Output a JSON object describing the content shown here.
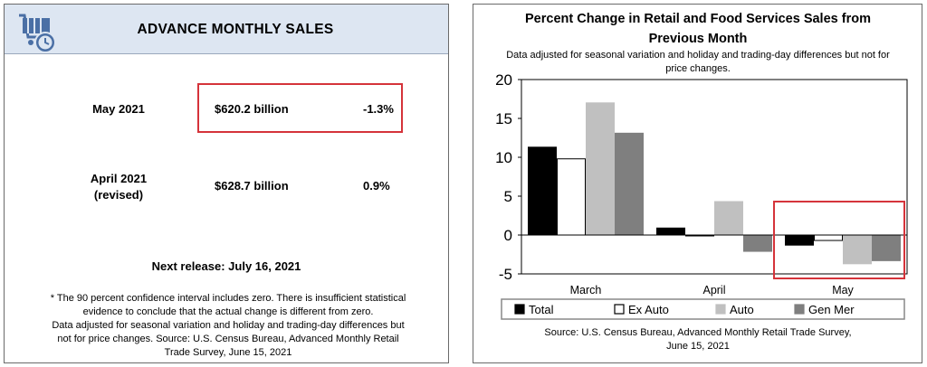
{
  "sales_panel": {
    "title": "ADVANCE MONTHLY SALES",
    "icon": "shopping-cart-clock-icon",
    "rows": [
      {
        "label": "May 2021",
        "value": "$620.2 billion",
        "change": "-1.3%"
      },
      {
        "label_line1": "April 2021",
        "label_line2": "(revised)",
        "value": "$628.7 billion",
        "change": "0.9%"
      }
    ],
    "next_release": "Next release: July 16, 2021",
    "footnote": [
      "* The 90 percent confidence interval includes zero. There is insufficient statistical",
      "evidence to conclude that the actual change is different from zero.",
      "Data adjusted for seasonal variation and holiday and trading-day differences but",
      "not for price changes. Source: U.S. Census Bureau, Advanced Monthly Retail",
      "Trade Survey, June 15, 2021"
    ],
    "highlight_color": "#d5333a",
    "header_color": "#dde6f2"
  },
  "chart_data": {
    "type": "bar",
    "title_lines": [
      "Percent Change in Retail and Food Services Sales from",
      "Previous Month"
    ],
    "subtitle_lines": [
      "Data adjusted for seasonal variation and holiday and trading-day differences but not for",
      "price changes."
    ],
    "categories": [
      "March",
      "April",
      "May"
    ],
    "series": [
      {
        "name": "Total",
        "values": [
          11.3,
          0.9,
          -1.3
        ],
        "color": "#000000",
        "stroke": "#000000"
      },
      {
        "name": "Ex Auto",
        "values": [
          9.8,
          -0.1,
          -0.7
        ],
        "color": "#ffffff",
        "stroke": "#000000"
      },
      {
        "name": "Auto",
        "values": [
          17.0,
          4.3,
          -3.7
        ],
        "color": "#c0c0c0",
        "stroke": "#c0c0c0"
      },
      {
        "name": "Gen Mer",
        "values": [
          13.1,
          -2.1,
          -3.3
        ],
        "color": "#7f7f7f",
        "stroke": "#7f7f7f"
      }
    ],
    "ylim": [
      -5,
      20
    ],
    "yticks": [
      "20",
      "15",
      "10",
      "5",
      "0",
      "-5"
    ],
    "legend_position": "bottom",
    "source_lines": [
      "Source: U.S. Census Bureau, Advanced Monthly Retail Trade Survey,",
      "June 15, 2021"
    ],
    "highlight": "May",
    "highlight_color": "#d5333a"
  }
}
